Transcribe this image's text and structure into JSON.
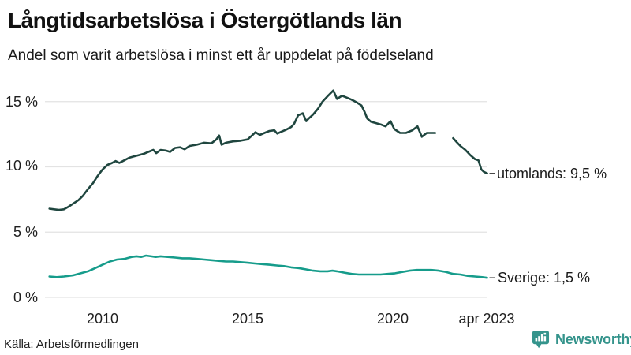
{
  "chart_data": {
    "type": "line",
    "title": "Långtidsarbetslösa i Östergötlands län",
    "subtitle": "Andel som varit arbetslösa i minst ett år uppdelat på födelseland",
    "unit": "%",
    "grid": "horizontal",
    "legend_position": "end-of-line",
    "xlim": [
      2008.0,
      2023.42
    ],
    "ylim": [
      0,
      17
    ],
    "x_ticks": [
      {
        "value": 2010,
        "label": "2010"
      },
      {
        "value": 2015,
        "label": "2015"
      },
      {
        "value": 2020,
        "label": "2020"
      },
      {
        "value": 2023.25,
        "label": "apr 2023"
      }
    ],
    "y_ticks": [
      {
        "value": 0,
        "label": "0 %"
      },
      {
        "value": 5,
        "label": "5 %"
      },
      {
        "value": 10,
        "label": "10 %"
      },
      {
        "value": 15,
        "label": "15 %"
      }
    ],
    "series": [
      {
        "name": "utomlands",
        "label": "utomlands: 9,5 %",
        "last_value": "9,5 %",
        "color": "#1f463f",
        "segments": [
          [
            [
              2008.17,
              6.8
            ],
            [
              2008.33,
              6.75
            ],
            [
              2008.5,
              6.7
            ],
            [
              2008.67,
              6.75
            ],
            [
              2008.83,
              6.95
            ],
            [
              2009.0,
              7.2
            ],
            [
              2009.17,
              7.45
            ],
            [
              2009.33,
              7.8
            ],
            [
              2009.5,
              8.3
            ],
            [
              2009.67,
              8.75
            ],
            [
              2009.83,
              9.3
            ],
            [
              2010.0,
              9.8
            ],
            [
              2010.17,
              10.15
            ],
            [
              2010.33,
              10.3
            ],
            [
              2010.45,
              10.45
            ],
            [
              2010.58,
              10.3
            ],
            [
              2010.75,
              10.5
            ],
            [
              2010.92,
              10.7
            ],
            [
              2011.08,
              10.8
            ],
            [
              2011.25,
              10.9
            ],
            [
              2011.42,
              11.0
            ],
            [
              2011.58,
              11.15
            ],
            [
              2011.75,
              11.3
            ],
            [
              2011.85,
              11.05
            ],
            [
              2012.0,
              11.3
            ],
            [
              2012.17,
              11.25
            ],
            [
              2012.33,
              11.15
            ],
            [
              2012.5,
              11.45
            ],
            [
              2012.67,
              11.5
            ],
            [
              2012.83,
              11.35
            ],
            [
              2013.0,
              11.6
            ],
            [
              2013.25,
              11.7
            ],
            [
              2013.5,
              11.85
            ],
            [
              2013.75,
              11.8
            ],
            [
              2013.92,
              12.1
            ],
            [
              2014.02,
              12.4
            ],
            [
              2014.1,
              11.7
            ],
            [
              2014.25,
              11.85
            ],
            [
              2014.5,
              11.95
            ],
            [
              2014.75,
              12.0
            ],
            [
              2015.0,
              12.1
            ],
            [
              2015.17,
              12.45
            ],
            [
              2015.27,
              12.65
            ],
            [
              2015.42,
              12.45
            ],
            [
              2015.58,
              12.6
            ],
            [
              2015.75,
              12.75
            ],
            [
              2015.92,
              12.8
            ],
            [
              2016.02,
              12.55
            ],
            [
              2016.17,
              12.7
            ],
            [
              2016.33,
              12.85
            ],
            [
              2016.5,
              13.05
            ],
            [
              2016.6,
              13.3
            ],
            [
              2016.74,
              13.95
            ],
            [
              2016.9,
              14.1
            ],
            [
              2017.02,
              13.5
            ],
            [
              2017.1,
              13.7
            ],
            [
              2017.25,
              14.0
            ],
            [
              2017.42,
              14.45
            ],
            [
              2017.58,
              15.0
            ],
            [
              2017.75,
              15.4
            ],
            [
              2017.95,
              15.85
            ],
            [
              2018.08,
              15.2
            ],
            [
              2018.25,
              15.45
            ],
            [
              2018.42,
              15.3
            ],
            [
              2018.58,
              15.15
            ],
            [
              2018.75,
              14.95
            ],
            [
              2018.92,
              14.7
            ],
            [
              2019.03,
              14.2
            ],
            [
              2019.12,
              13.7
            ],
            [
              2019.25,
              13.45
            ],
            [
              2019.42,
              13.35
            ],
            [
              2019.58,
              13.25
            ],
            [
              2019.75,
              13.1
            ],
            [
              2019.92,
              13.5
            ],
            [
              2020.05,
              12.9
            ],
            [
              2020.25,
              12.6
            ],
            [
              2020.45,
              12.6
            ],
            [
              2020.67,
              12.8
            ],
            [
              2020.85,
              13.1
            ],
            [
              2021.0,
              12.3
            ],
            [
              2021.17,
              12.6
            ],
            [
              2021.33,
              12.6
            ],
            [
              2021.46,
              12.6
            ]
          ],
          [
            [
              2022.08,
              12.2
            ],
            [
              2022.2,
              11.9
            ],
            [
              2022.33,
              11.6
            ],
            [
              2022.5,
              11.3
            ],
            [
              2022.67,
              10.9
            ],
            [
              2022.83,
              10.6
            ],
            [
              2022.95,
              10.5
            ],
            [
              2023.05,
              9.8
            ],
            [
              2023.15,
              9.6
            ],
            [
              2023.25,
              9.5
            ]
          ]
        ]
      },
      {
        "name": "Sverige",
        "label": "Sverige: 1,5 %",
        "last_value": "1,5 %",
        "color": "#169c8b",
        "segments": [
          [
            [
              2008.17,
              1.6
            ],
            [
              2008.42,
              1.55
            ],
            [
              2008.67,
              1.6
            ],
            [
              2009.0,
              1.7
            ],
            [
              2009.25,
              1.85
            ],
            [
              2009.5,
              2.0
            ],
            [
              2009.75,
              2.25
            ],
            [
              2010.0,
              2.5
            ],
            [
              2010.25,
              2.75
            ],
            [
              2010.5,
              2.9
            ],
            [
              2010.75,
              2.95
            ],
            [
              2011.0,
              3.1
            ],
            [
              2011.17,
              3.15
            ],
            [
              2011.33,
              3.1
            ],
            [
              2011.5,
              3.2
            ],
            [
              2011.67,
              3.15
            ],
            [
              2011.83,
              3.1
            ],
            [
              2012.0,
              3.15
            ],
            [
              2012.25,
              3.1
            ],
            [
              2012.5,
              3.05
            ],
            [
              2012.75,
              3.0
            ],
            [
              2013.0,
              3.0
            ],
            [
              2013.25,
              2.95
            ],
            [
              2013.5,
              2.9
            ],
            [
              2013.75,
              2.85
            ],
            [
              2014.0,
              2.8
            ],
            [
              2014.25,
              2.75
            ],
            [
              2014.5,
              2.75
            ],
            [
              2014.75,
              2.7
            ],
            [
              2015.0,
              2.65
            ],
            [
              2015.25,
              2.6
            ],
            [
              2015.5,
              2.55
            ],
            [
              2015.75,
              2.5
            ],
            [
              2016.0,
              2.45
            ],
            [
              2016.25,
              2.4
            ],
            [
              2016.5,
              2.3
            ],
            [
              2016.75,
              2.25
            ],
            [
              2017.0,
              2.15
            ],
            [
              2017.25,
              2.05
            ],
            [
              2017.5,
              2.0
            ],
            [
              2017.75,
              2.0
            ],
            [
              2017.92,
              2.05
            ],
            [
              2018.08,
              2.0
            ],
            [
              2018.33,
              1.9
            ],
            [
              2018.58,
              1.8
            ],
            [
              2018.83,
              1.75
            ],
            [
              2019.08,
              1.75
            ],
            [
              2019.33,
              1.75
            ],
            [
              2019.58,
              1.75
            ],
            [
              2019.83,
              1.8
            ],
            [
              2020.08,
              1.85
            ],
            [
              2020.33,
              1.95
            ],
            [
              2020.58,
              2.05
            ],
            [
              2020.83,
              2.1
            ],
            [
              2021.08,
              2.1
            ],
            [
              2021.33,
              2.1
            ],
            [
              2021.58,
              2.05
            ],
            [
              2021.83,
              1.95
            ],
            [
              2022.08,
              1.8
            ],
            [
              2022.33,
              1.75
            ],
            [
              2022.58,
              1.65
            ],
            [
              2022.83,
              1.6
            ],
            [
              2023.08,
              1.55
            ],
            [
              2023.25,
              1.5
            ]
          ]
        ]
      }
    ]
  },
  "footer": {
    "source": "Källa: Arbetsförmedlingen",
    "brand": "Newsworthy"
  },
  "colors": {
    "grid": "#e3e3e3",
    "text": "#1a1a1a",
    "title": "#111111",
    "brand": "#35948c",
    "legend_dash": "#444444"
  }
}
